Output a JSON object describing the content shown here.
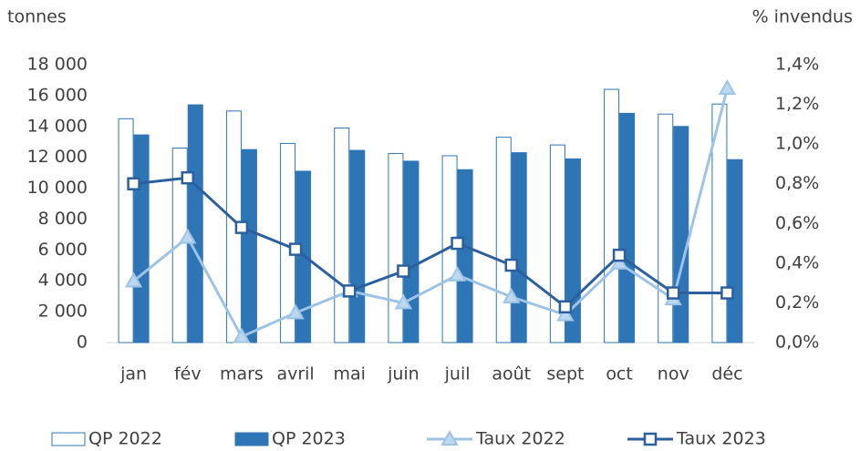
{
  "chart_data": {
    "type": "bar",
    "y_label": "tonnes",
    "y2_label": "% invendus",
    "categories": [
      "jan",
      "fév",
      "mars",
      "avril",
      "mai",
      "juin",
      "juil",
      "août",
      "sept",
      "oct",
      "nov",
      "déc"
    ],
    "series": [
      {
        "name": "QP 2022",
        "type": "bar",
        "color": "#ffffff",
        "stroke": "#2e75b6",
        "values": [
          14500,
          12600,
          15000,
          12900,
          13900,
          12250,
          12100,
          13300,
          12800,
          16400,
          14800,
          15450
        ]
      },
      {
        "name": "QP 2023",
        "type": "bar",
        "color": "#2e75b6",
        "stroke": "#2e75b6",
        "values": [
          13450,
          15400,
          12500,
          11100,
          12450,
          11750,
          11200,
          12300,
          11900,
          14850,
          14000,
          11850
        ]
      },
      {
        "name": "Taux 2022",
        "type": "line",
        "axis": "y2",
        "color": "#9dc3e6",
        "marker": "triangle",
        "values": [
          0.31,
          0.53,
          0.03,
          0.15,
          0.26,
          0.2,
          0.34,
          0.23,
          0.14,
          0.4,
          0.22,
          1.28
        ]
      },
      {
        "name": "Taux 2023",
        "type": "line",
        "axis": "y2",
        "color": "#2c5f9e",
        "marker": "square",
        "values": [
          0.8,
          0.83,
          0.58,
          0.47,
          0.26,
          0.36,
          0.5,
          0.39,
          0.18,
          0.44,
          0.25,
          0.25
        ]
      }
    ],
    "ylim": [
      0,
      18000
    ],
    "yticks": [
      0,
      {
        "value": 2000,
        "label": "2 000"
      },
      {
        "value": 4000,
        "label": "4 000"
      },
      {
        "value": 6000,
        "label": "6 000"
      },
      {
        "value": 8000,
        "label": "8 000"
      },
      {
        "value": 10000,
        "label": "10 000"
      },
      {
        "value": 12000,
        "label": "12 000"
      },
      {
        "value": 14000,
        "label": "14 000"
      },
      {
        "value": 16000,
        "label": "16 000"
      },
      {
        "value": 18000,
        "label": "18 000"
      }
    ],
    "y2lim": [
      0,
      1.4
    ],
    "y2ticks": [
      {
        "value": 0,
        "label": "0,0%"
      },
      {
        "value": 0.2,
        "label": "0,2%"
      },
      {
        "value": 0.4,
        "label": "0,4%"
      },
      {
        "value": 0.6,
        "label": "0,6%"
      },
      {
        "value": 0.8,
        "label": "0,8%"
      },
      {
        "value": 1.0,
        "label": "1,0%"
      },
      {
        "value": 1.2,
        "label": "1,2%"
      },
      {
        "value": 1.4,
        "label": "1,4%"
      }
    ],
    "legend": "bottom"
  }
}
